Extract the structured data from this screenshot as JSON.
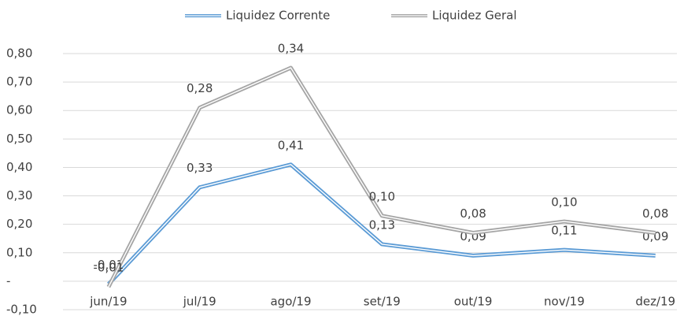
{
  "chart_data": {
    "type": "line",
    "stacked": true,
    "categories": [
      "jun/19",
      "jul/19",
      "ago/19",
      "set/19",
      "out/19",
      "nov/19",
      "dez/19"
    ],
    "series": [
      {
        "name": "Liquidez Corrente",
        "color": "#5b9bd5",
        "values": [
          -0.01,
          0.33,
          0.41,
          0.13,
          0.09,
          0.11,
          0.09
        ],
        "value_labels": [
          "-0,01",
          "0,33",
          "0,41",
          "0,13",
          "0,09",
          "0,11",
          "0,09"
        ]
      },
      {
        "name": "Liquidez Geral",
        "color": "#a5a5a5",
        "values": [
          -0.01,
          0.28,
          0.34,
          0.1,
          0.08,
          0.1,
          0.08
        ],
        "value_labels": [
          "-0,01",
          "0,28",
          "0,34",
          "0,10",
          "0,08",
          "0,10",
          "0,08"
        ]
      }
    ],
    "ylim": [
      -0.1,
      0.8
    ],
    "yticks": [
      {
        "value": -0.1,
        "label": "-0,10"
      },
      {
        "value": 0,
        "label": "-"
      },
      {
        "value": 0.1,
        "label": "0,10"
      },
      {
        "value": 0.2,
        "label": "0,20"
      },
      {
        "value": 0.3,
        "label": "0,30"
      },
      {
        "value": 0.4,
        "label": "0,40"
      },
      {
        "value": 0.5,
        "label": "0,50"
      },
      {
        "value": 0.6,
        "label": "0,60"
      },
      {
        "value": 0.7,
        "label": "0,70"
      },
      {
        "value": 0.8,
        "label": "0,80"
      }
    ],
    "grid": true,
    "legend": "top"
  }
}
